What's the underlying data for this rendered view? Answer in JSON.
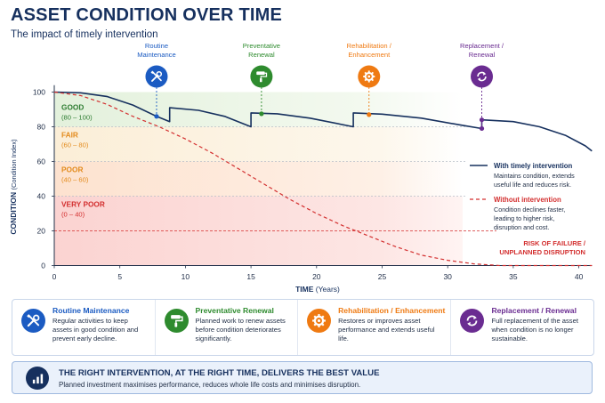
{
  "header": {
    "title": "ASSET CONDITION OVER TIME",
    "subtitle": "The impact of timely intervention"
  },
  "chart_data": {
    "type": "line",
    "xlabel": "TIME",
    "xlabel_unit": "(Years)",
    "ylabel": "CONDITION",
    "ylabel_unit": "(Condition Index)",
    "xlim": [
      0,
      41
    ],
    "ylim": [
      0,
      105
    ],
    "x_ticks": [
      "0",
      "5",
      "10",
      "15",
      "20",
      "25",
      "30",
      "35",
      "40"
    ],
    "y_ticks": [
      "0",
      "20",
      "40",
      "60",
      "80",
      "100"
    ],
    "bands": [
      {
        "name": "GOOD",
        "range_label": "(80 – 100)",
        "from": 80,
        "to": 100,
        "color": "#2e7d32"
      },
      {
        "name": "FAIR",
        "range_label": "(60 – 80)",
        "from": 60,
        "to": 80,
        "color": "#e38b1d"
      },
      {
        "name": "POOR",
        "range_label": "(40 – 60)",
        "from": 40,
        "to": 60,
        "color": "#e38b1d"
      },
      {
        "name": "VERY POOR",
        "range_label": "(0 – 40)",
        "from": 0,
        "to": 40,
        "color": "#d32f2f"
      }
    ],
    "series": [
      {
        "name": "With timely intervention",
        "description": "Maintains condition, extends useful life and reduces risk.",
        "color": "#16305e",
        "style": "solid",
        "points": [
          [
            0,
            100
          ],
          [
            2,
            99.6
          ],
          [
            4,
            97.5
          ],
          [
            6,
            92.5
          ],
          [
            7.8,
            86
          ],
          [
            8.8,
            83
          ],
          [
            8.8,
            91
          ],
          [
            11,
            89.5
          ],
          [
            13,
            86
          ],
          [
            15,
            80
          ],
          [
            15,
            88
          ],
          [
            17,
            87.5
          ],
          [
            19.5,
            85
          ],
          [
            22.8,
            80
          ],
          [
            22.8,
            88
          ],
          [
            25,
            87.3
          ],
          [
            28,
            85
          ],
          [
            31,
            81
          ],
          [
            32.6,
            79
          ],
          [
            32.6,
            84
          ],
          [
            35,
            83
          ],
          [
            37,
            80
          ],
          [
            39,
            75
          ],
          [
            40.5,
            69
          ],
          [
            41,
            66
          ]
        ]
      },
      {
        "name": "Without intervention",
        "description": "Condition declines faster, leading to higher risk, disruption and cost.",
        "color": "#d32f2f",
        "style": "dashed",
        "points": [
          [
            0,
            100
          ],
          [
            2,
            98
          ],
          [
            4,
            93
          ],
          [
            6,
            86
          ],
          [
            8,
            80
          ],
          [
            10,
            73
          ],
          [
            12,
            65
          ],
          [
            14,
            56
          ],
          [
            16,
            47
          ],
          [
            18,
            38
          ],
          [
            20,
            30
          ],
          [
            22,
            23
          ],
          [
            24,
            17
          ],
          [
            26,
            11
          ],
          [
            28,
            6
          ],
          [
            30,
            3
          ],
          [
            32,
            1
          ],
          [
            34,
            0
          ],
          [
            41,
            0
          ]
        ]
      }
    ],
    "interventions": [
      {
        "name": "Routine Maintenance",
        "label": [
          "Routine",
          "Maintenance"
        ],
        "x": 7.8,
        "y": 86,
        "color": "#1b5bc2",
        "icon": "tools-icon"
      },
      {
        "name": "Preventative Renewal",
        "label": [
          "Preventative",
          "Renewal"
        ],
        "x": 15.8,
        "y": 87.5,
        "color": "#2e8b2e",
        "icon": "paint-roller-icon"
      },
      {
        "name": "Rehabilitation / Enhancement",
        "label": [
          "Rehabilitation /",
          "Enhancement"
        ],
        "x": 24,
        "y": 87,
        "color": "#ef7a12",
        "icon": "gear-icon"
      },
      {
        "name": "Replacement / Renewal",
        "label": [
          "Replacement /",
          "Renewal"
        ],
        "x": 32.6,
        "y": 84,
        "color": "#6a2c91",
        "icon": "refresh-icon"
      }
    ],
    "replacement_low_point": {
      "x": 32.6,
      "y": 79
    },
    "risk_label": [
      "RISK OF FAILURE /",
      "UNPLANNED DISRUPTION"
    ]
  },
  "cards": [
    {
      "title": "Routine Maintenance",
      "desc": "Regular activities to keep assets in good condition and prevent early decline.",
      "color": "#1b5bc2",
      "icon": "tools-icon"
    },
    {
      "title": "Preventative Renewal",
      "desc": "Planned work to renew assets before condition deteriorates significantly.",
      "color": "#2e8b2e",
      "icon": "paint-roller-icon"
    },
    {
      "title": "Rehabilitation / Enhancement",
      "desc": "Restores or improves asset performance and extends useful life.",
      "color": "#ef7a12",
      "icon": "gear-icon"
    },
    {
      "title": "Replacement / Renewal",
      "desc": "Full replacement of the asset when condition is no longer sustainable.",
      "color": "#6a2c91",
      "icon": "refresh-icon"
    }
  ],
  "banner": {
    "title": "THE RIGHT INTERVENTION, AT THE RIGHT TIME, DELIVERS THE BEST VALUE",
    "desc": "Planned investment maximises performance, reduces whole life costs and minimises disruption.",
    "icon": "bar-chart-icon"
  }
}
